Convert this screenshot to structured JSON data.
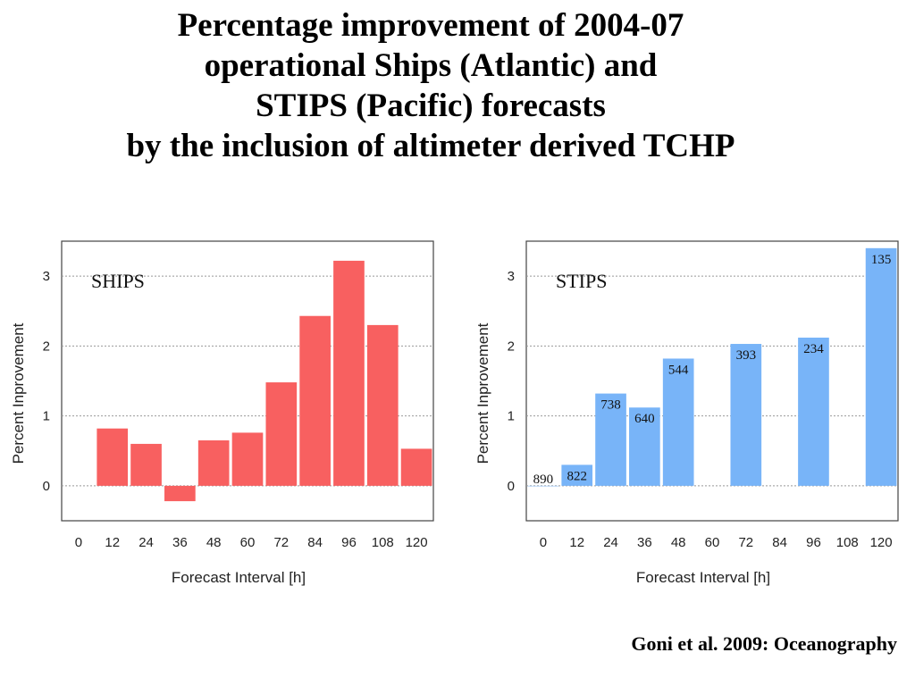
{
  "title_lines": [
    "Percentage improvement of 2004-07",
    "operational Ships (Atlantic) and",
    "STIPS (Pacific) forecasts",
    "by the inclusion of altimeter derived TCHP"
  ],
  "citation": "Goni et al. 2009: Oceanography",
  "chart_data": [
    {
      "type": "bar",
      "panel_label": "SHIPS",
      "xlabel": "Forecast Interval [h]",
      "ylabel": "Percent Inprovement",
      "x_ticks": [
        "0",
        "12",
        "24",
        "36",
        "48",
        "60",
        "72",
        "84",
        "96",
        "108",
        "120"
      ],
      "y_ticks": [
        "0",
        "1",
        "2",
        "3"
      ],
      "ylim": [
        -0.5,
        3.5
      ],
      "xlim": [
        -6,
        126
      ],
      "grid": true,
      "bar_color": "#f86060",
      "bars": [
        {
          "x": 12,
          "value": 0.82
        },
        {
          "x": 24,
          "value": 0.6
        },
        {
          "x": 36,
          "value": -0.22
        },
        {
          "x": 48,
          "value": 0.65
        },
        {
          "x": 60,
          "value": 0.76
        },
        {
          "x": 72,
          "value": 1.48
        },
        {
          "x": 84,
          "value": 2.43
        },
        {
          "x": 96,
          "value": 3.22
        },
        {
          "x": 108,
          "value": 2.3
        },
        {
          "x": 120,
          "value": 0.53
        }
      ]
    },
    {
      "type": "bar",
      "panel_label": "STIPS",
      "xlabel": "Forecast Interval [h]",
      "ylabel": "Percent Inprovement",
      "x_ticks": [
        "0",
        "12",
        "24",
        "36",
        "48",
        "60",
        "72",
        "84",
        "96",
        "108",
        "120"
      ],
      "y_ticks": [
        "0",
        "1",
        "2",
        "3"
      ],
      "ylim": [
        -0.5,
        3.5
      ],
      "xlim": [
        -6,
        126
      ],
      "grid": true,
      "bar_color": "#78b4f8",
      "bars": [
        {
          "x": 0,
          "value": 0.0,
          "count": "890"
        },
        {
          "x": 12,
          "value": 0.3,
          "count": "822"
        },
        {
          "x": 24,
          "value": 1.32,
          "count": "738"
        },
        {
          "x": 36,
          "value": 1.12,
          "count": "640"
        },
        {
          "x": 48,
          "value": 1.82,
          "count": "544"
        },
        {
          "x": 72,
          "value": 2.03,
          "count": "393"
        },
        {
          "x": 96,
          "value": 2.12,
          "count": "234"
        },
        {
          "x": 120,
          "value": 3.4,
          "count": "135"
        }
      ]
    }
  ]
}
